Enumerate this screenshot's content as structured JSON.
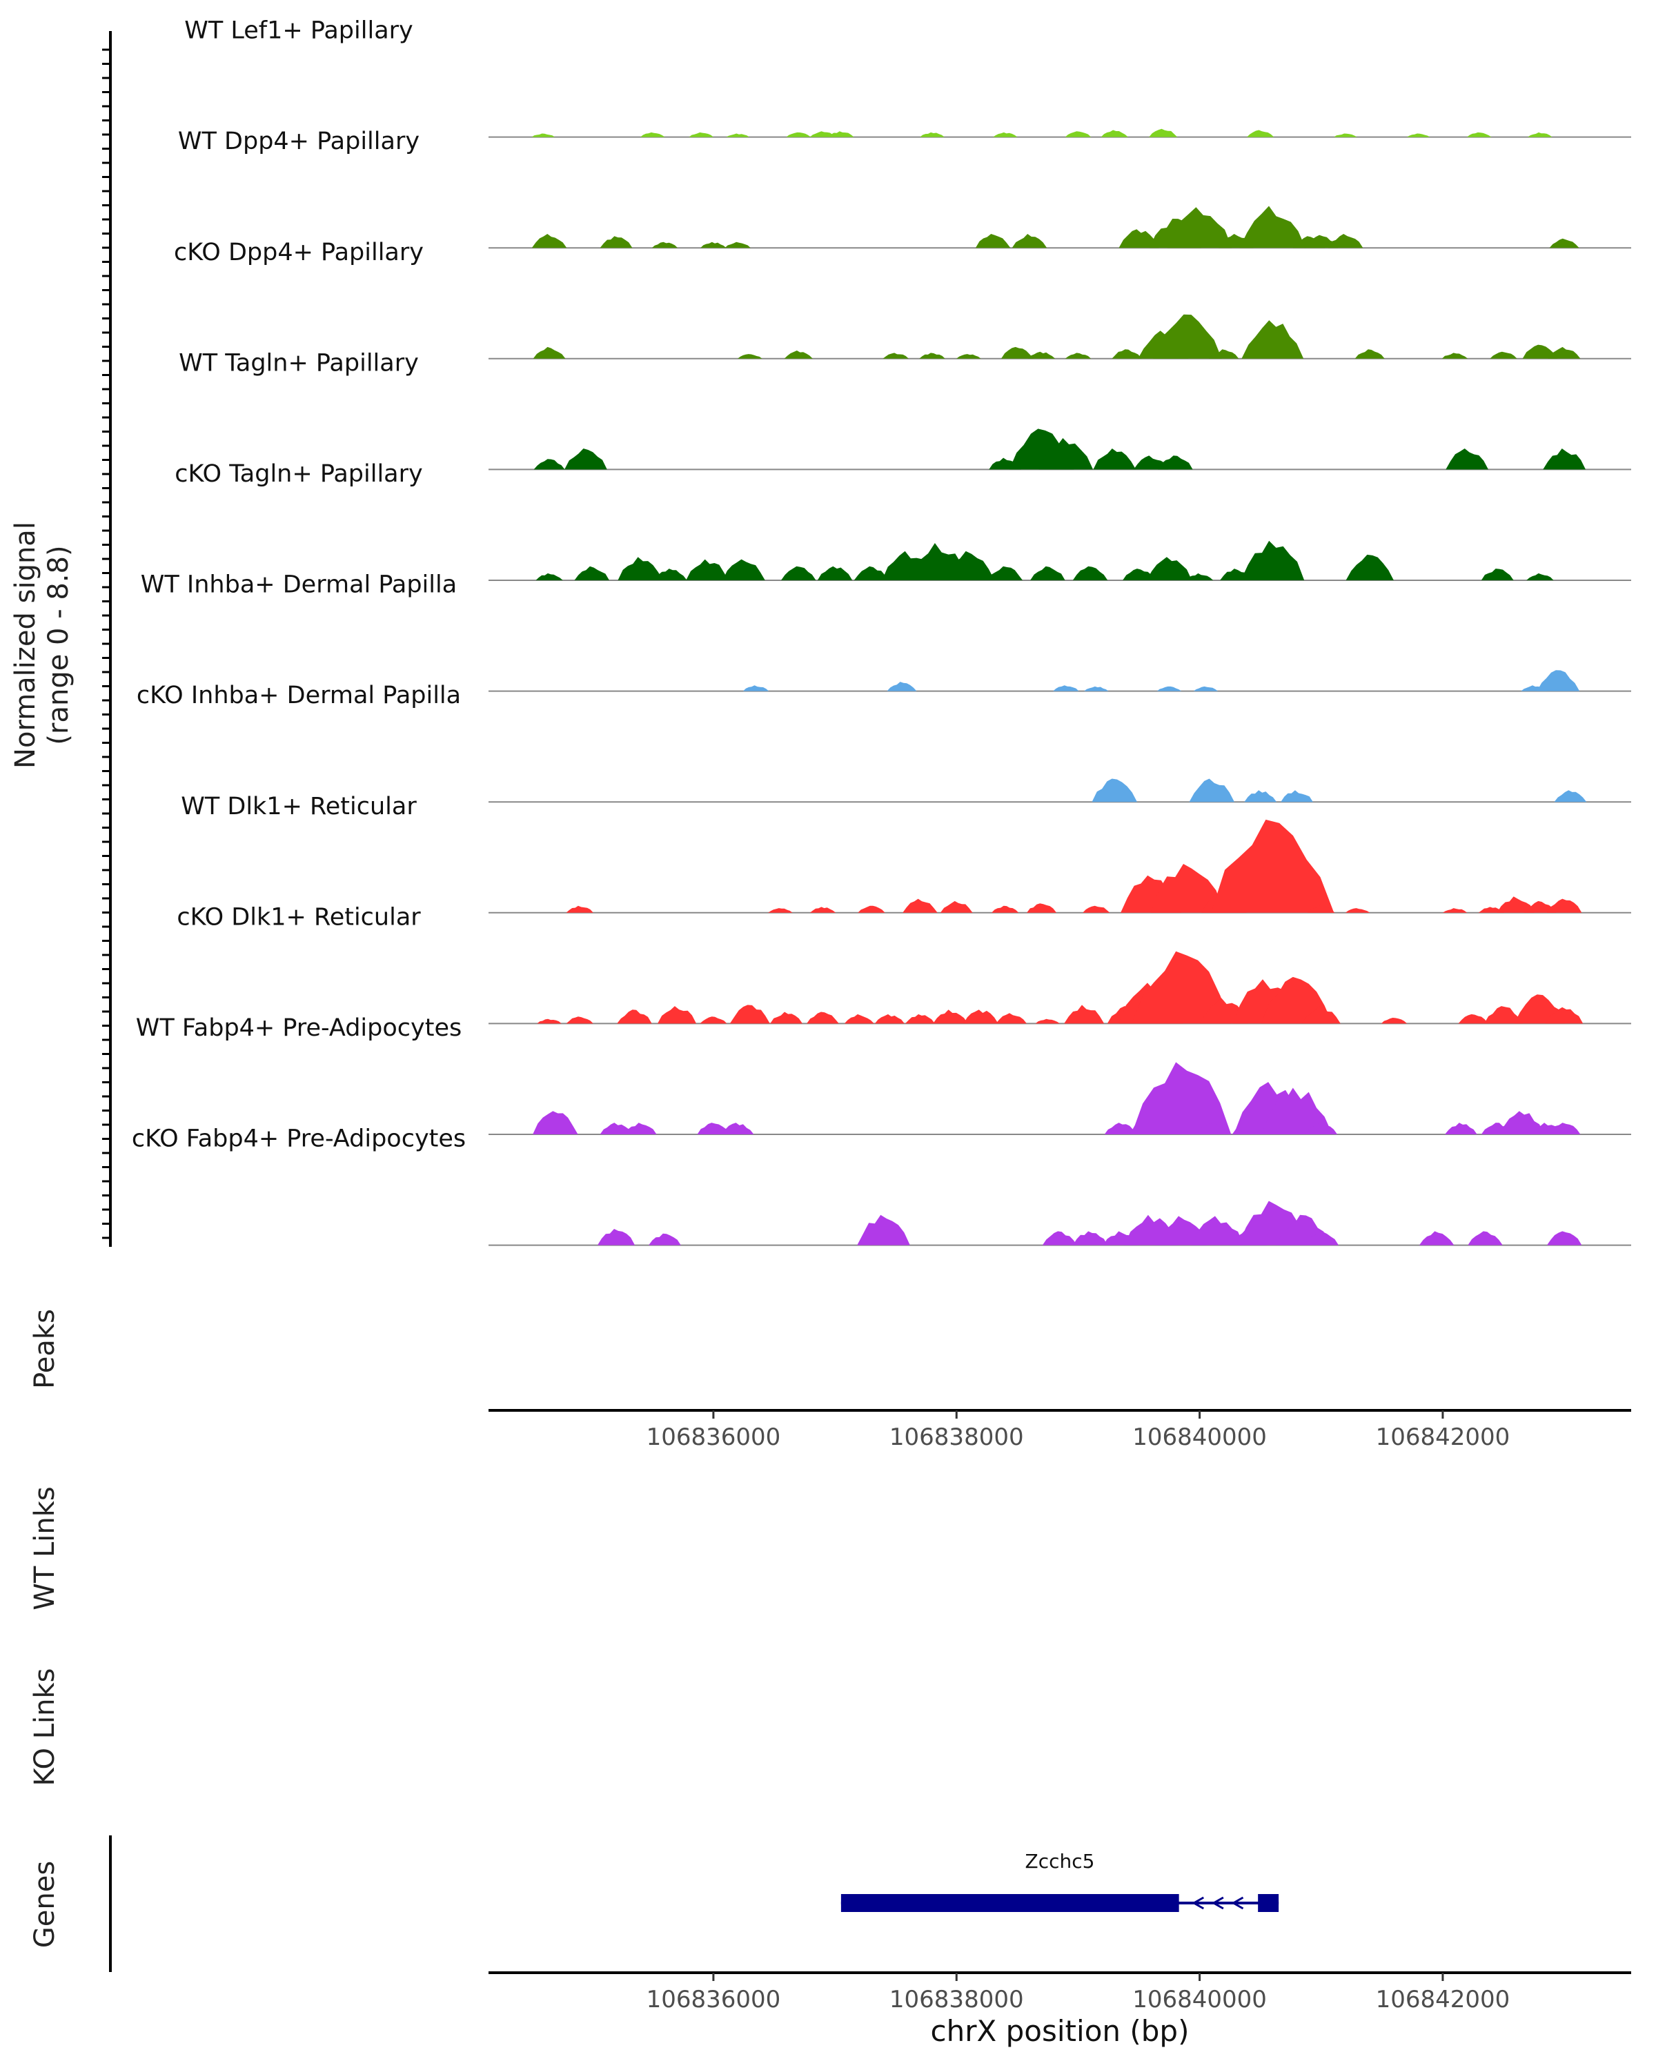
{
  "chart_data": {
    "type": "area",
    "genome_browser": true,
    "chromosome": "chrX",
    "x_range": [
      106834150,
      106843550
    ],
    "y_range": [
      0,
      8.8
    ],
    "xlabel": "chrX position (bp)",
    "ylabel_line1": "Normalized signal",
    "ylabel_line2": "(range 0 - 8.8)",
    "x_ticks": [
      106836000,
      106838000,
      106840000,
      106842000
    ],
    "x_tick_labels": [
      "106836000",
      "106838000",
      "106840000",
      "106842000"
    ],
    "panels": {
      "peaks": "Peaks",
      "wt_links": "WT Links",
      "ko_links": "KO Links",
      "genes": "Genes"
    },
    "gene": {
      "name": "Zcchc5",
      "strand": "-",
      "start": 106837050,
      "end": 106840650,
      "exons": [
        [
          106837050,
          106839830
        ],
        [
          106840480,
          106840650
        ]
      ]
    },
    "tracks": [
      {
        "name": "WT Lef1+ Papillary",
        "color": "#7fd321",
        "peaks": [
          [
            106834600,
            0.3
          ],
          [
            106835500,
            0.4
          ],
          [
            106835900,
            0.4
          ],
          [
            106836200,
            0.3
          ],
          [
            106836700,
            0.4
          ],
          [
            106836900,
            0.5
          ],
          [
            106837050,
            0.5
          ],
          [
            106837800,
            0.4
          ],
          [
            106838400,
            0.4
          ],
          [
            106839000,
            0.5
          ],
          [
            106839300,
            0.6
          ],
          [
            106839700,
            0.7
          ],
          [
            106840500,
            0.6
          ],
          [
            106841200,
            0.3
          ],
          [
            106841800,
            0.3
          ],
          [
            106842300,
            0.4
          ],
          [
            106842800,
            0.4
          ]
        ]
      },
      {
        "name": "WT Dpp4+ Papillary",
        "color": "#4a8c00",
        "peaks": [
          [
            106834650,
            1.2
          ],
          [
            106835200,
            1.0
          ],
          [
            106835600,
            0.5
          ],
          [
            106836000,
            0.5
          ],
          [
            106836200,
            0.5
          ],
          [
            106838300,
            1.2
          ],
          [
            106838600,
            1.2
          ],
          [
            106839500,
            1.6
          ],
          [
            106839800,
            2.5
          ],
          [
            106840000,
            3.5
          ],
          [
            106840300,
            1.2
          ],
          [
            106840600,
            3.6
          ],
          [
            106840900,
            1.0
          ],
          [
            106841000,
            1.1
          ],
          [
            106841200,
            1.2
          ],
          [
            106843000,
            0.8
          ]
        ]
      },
      {
        "name": "cKO Dpp4+ Papillary",
        "color": "#4a8c00",
        "peaks": [
          [
            106834650,
            1.0
          ],
          [
            106836300,
            0.4
          ],
          [
            106836700,
            0.7
          ],
          [
            106837500,
            0.5
          ],
          [
            106837800,
            0.5
          ],
          [
            106838100,
            0.4
          ],
          [
            106838500,
            1.0
          ],
          [
            106838700,
            0.6
          ],
          [
            106839000,
            0.5
          ],
          [
            106839400,
            0.8
          ],
          [
            106839700,
            2.4
          ],
          [
            106839900,
            3.8
          ],
          [
            106840200,
            0.8
          ],
          [
            106840600,
            3.3
          ],
          [
            106841400,
            0.8
          ],
          [
            106842100,
            0.5
          ],
          [
            106842500,
            0.6
          ],
          [
            106842800,
            1.2
          ],
          [
            106843000,
            1.0
          ]
        ]
      },
      {
        "name": "WT Tagln+ Papillary",
        "color": "#006400",
        "peaks": [
          [
            106834650,
            0.9
          ],
          [
            106834950,
            1.8
          ],
          [
            106838400,
            1.0
          ],
          [
            106838700,
            3.5
          ],
          [
            106838900,
            2.7
          ],
          [
            106839300,
            1.8
          ],
          [
            106839600,
            1.2
          ],
          [
            106839800,
            1.2
          ],
          [
            106842200,
            1.8
          ],
          [
            106843000,
            1.8
          ]
        ]
      },
      {
        "name": "cKO Tagln+ Papillary",
        "color": "#006400",
        "peaks": [
          [
            106834650,
            0.6
          ],
          [
            106835000,
            1.2
          ],
          [
            106835400,
            2.0
          ],
          [
            106835650,
            1.0
          ],
          [
            106835950,
            1.8
          ],
          [
            106836250,
            1.8
          ],
          [
            106836700,
            1.2
          ],
          [
            106837000,
            1.2
          ],
          [
            106837300,
            1.2
          ],
          [
            106837600,
            2.5
          ],
          [
            106837850,
            3.2
          ],
          [
            106838100,
            2.5
          ],
          [
            106838400,
            1.2
          ],
          [
            106838750,
            1.2
          ],
          [
            106839100,
            1.2
          ],
          [
            106839500,
            1.0
          ],
          [
            106839750,
            2.0
          ],
          [
            106840000,
            0.6
          ],
          [
            106840300,
            1.0
          ],
          [
            106840600,
            3.4
          ],
          [
            106841400,
            2.2
          ],
          [
            106842450,
            1.0
          ],
          [
            106842800,
            0.6
          ]
        ]
      },
      {
        "name": "WT Inhba+ Dermal Papilla",
        "color": "#5ea8e6",
        "peaks": [
          [
            106836350,
            0.5
          ],
          [
            106837550,
            0.8
          ],
          [
            106838900,
            0.5
          ],
          [
            106839150,
            0.4
          ],
          [
            106839750,
            0.4
          ],
          [
            106840050,
            0.4
          ],
          [
            106842750,
            0.5
          ],
          [
            106842950,
            1.8
          ]
        ]
      },
      {
        "name": "cKO Inhba+ Dermal Papilla",
        "color": "#5ea8e6",
        "peaks": [
          [
            106839300,
            2.0
          ],
          [
            106840100,
            2.0
          ],
          [
            106840500,
            1.0
          ],
          [
            106840800,
            1.0
          ],
          [
            106843050,
            1.0
          ]
        ]
      },
      {
        "name": "WT Dlk1+ Reticular",
        "color": "#ff3333",
        "peaks": [
          [
            106834900,
            0.6
          ],
          [
            106836550,
            0.4
          ],
          [
            106836900,
            0.5
          ],
          [
            106837300,
            0.6
          ],
          [
            106837700,
            1.2
          ],
          [
            106838000,
            1.0
          ],
          [
            106838400,
            0.6
          ],
          [
            106838700,
            0.8
          ],
          [
            106839150,
            0.6
          ],
          [
            106839600,
            3.2
          ],
          [
            106839900,
            4.2
          ],
          [
            106840200,
            2.0
          ],
          [
            106840600,
            8.0
          ],
          [
            106841000,
            0.6
          ],
          [
            106841300,
            0.4
          ],
          [
            106842100,
            0.4
          ],
          [
            106842400,
            0.5
          ],
          [
            106842600,
            1.4
          ],
          [
            106842800,
            1.0
          ],
          [
            106843000,
            1.2
          ]
        ]
      },
      {
        "name": "cKO Dlk1+ Reticular",
        "color": "#ff3333",
        "peaks": [
          [
            106834650,
            0.4
          ],
          [
            106834900,
            0.6
          ],
          [
            106835350,
            1.2
          ],
          [
            106835700,
            1.5
          ],
          [
            106836000,
            0.6
          ],
          [
            106836300,
            1.6
          ],
          [
            106836600,
            1.0
          ],
          [
            106836900,
            1.0
          ],
          [
            106837200,
            0.8
          ],
          [
            106837450,
            0.8
          ],
          [
            106837700,
            0.8
          ],
          [
            106837950,
            1.2
          ],
          [
            106838200,
            1.2
          ],
          [
            106838450,
            0.9
          ],
          [
            106838750,
            0.4
          ],
          [
            106839050,
            1.6
          ],
          [
            106839400,
            1.5
          ],
          [
            106839600,
            3.5
          ],
          [
            106839850,
            6.2
          ],
          [
            106840200,
            2.2
          ],
          [
            106840550,
            3.8
          ],
          [
            106840800,
            4.0
          ],
          [
            106841000,
            1.5
          ],
          [
            106841600,
            0.5
          ],
          [
            106842250,
            0.8
          ],
          [
            106842500,
            1.5
          ],
          [
            106842800,
            2.5
          ],
          [
            106843000,
            1.4
          ]
        ]
      },
      {
        "name": "WT Fabp4+ Pre-Adipocytes",
        "color": "#b13ae8",
        "peaks": [
          [
            106834700,
            2.0
          ],
          [
            106835200,
            1.0
          ],
          [
            106835400,
            1.0
          ],
          [
            106836000,
            1.0
          ],
          [
            106836200,
            1.0
          ],
          [
            106839350,
            1.0
          ],
          [
            106839600,
            1.8
          ],
          [
            106839850,
            6.2
          ],
          [
            106840100,
            1.0
          ],
          [
            106840400,
            1.0
          ],
          [
            106840600,
            4.5
          ],
          [
            106840800,
            4.0
          ],
          [
            106841000,
            1.0
          ],
          [
            106842150,
            1.0
          ],
          [
            106842450,
            1.0
          ],
          [
            106842650,
            2.0
          ],
          [
            106842850,
            1.0
          ],
          [
            106843000,
            1.0
          ]
        ]
      },
      {
        "name": "cKO Fabp4+ Pre-Adipocytes",
        "color": "#b13ae8",
        "peaks": [
          [
            106835200,
            1.4
          ],
          [
            106835600,
            1.0
          ],
          [
            106837400,
            2.6
          ],
          [
            106838850,
            1.2
          ],
          [
            106839100,
            1.2
          ],
          [
            106839350,
            1.2
          ],
          [
            106839600,
            2.6
          ],
          [
            106839850,
            2.5
          ],
          [
            106840150,
            2.5
          ],
          [
            106840400,
            1.4
          ],
          [
            106840600,
            3.8
          ],
          [
            106840850,
            2.6
          ],
          [
            106841000,
            1.2
          ],
          [
            106841950,
            1.2
          ],
          [
            106842350,
            1.2
          ],
          [
            106843000,
            1.2
          ]
        ]
      }
    ]
  }
}
